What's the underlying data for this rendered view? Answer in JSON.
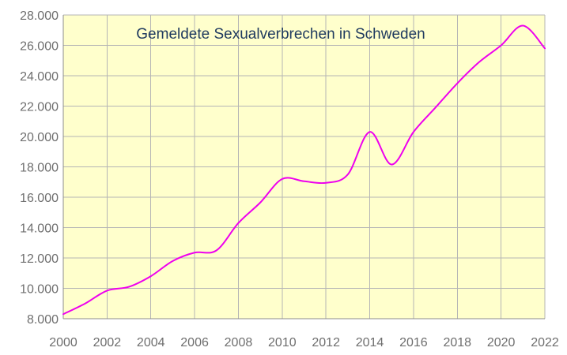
{
  "chart_data": {
    "type": "line",
    "title": "Gemeldete Sexualverbrechen in Schweden",
    "xlabel": "",
    "ylabel": "",
    "xlim": [
      2000,
      2022
    ],
    "ylim": [
      8000,
      28000
    ],
    "grid": true,
    "x_ticks": [
      2000,
      2002,
      2004,
      2006,
      2008,
      2010,
      2012,
      2014,
      2016,
      2018,
      2020,
      2022
    ],
    "x_tick_labels": [
      "2000",
      "2002",
      "2004",
      "2006",
      "2008",
      "2010",
      "2012",
      "2014",
      "2016",
      "2018",
      "2020",
      "2022"
    ],
    "y_ticks": [
      8000,
      10000,
      12000,
      14000,
      16000,
      18000,
      20000,
      22000,
      24000,
      26000,
      28000
    ],
    "y_tick_labels": [
      "8.000",
      "10.000",
      "12.000",
      "14.000",
      "16.000",
      "18.000",
      "20.000",
      "22.000",
      "24.000",
      "26.000",
      "28.000"
    ],
    "series": [
      {
        "name": "Gemeldete Sexualverbrechen",
        "color": "#ee00ee",
        "x": [
          2000,
          2001,
          2002,
          2003,
          2004,
          2005,
          2006,
          2007,
          2008,
          2009,
          2010,
          2011,
          2012,
          2013,
          2014,
          2015,
          2016,
          2017,
          2018,
          2019,
          2020,
          2021,
          2022
        ],
        "values": [
          8300,
          9000,
          9850,
          10100,
          10800,
          11800,
          12350,
          12500,
          14300,
          15650,
          17200,
          17050,
          16950,
          17500,
          20300,
          18150,
          20300,
          21900,
          23500,
          24900,
          26000,
          27300,
          25800
        ]
      }
    ]
  },
  "colors": {
    "plot_background": "#ffffcc",
    "grid": "#b5b5b5",
    "title": "#1f3a5f",
    "tick_labels": "#6e6e6e"
  }
}
